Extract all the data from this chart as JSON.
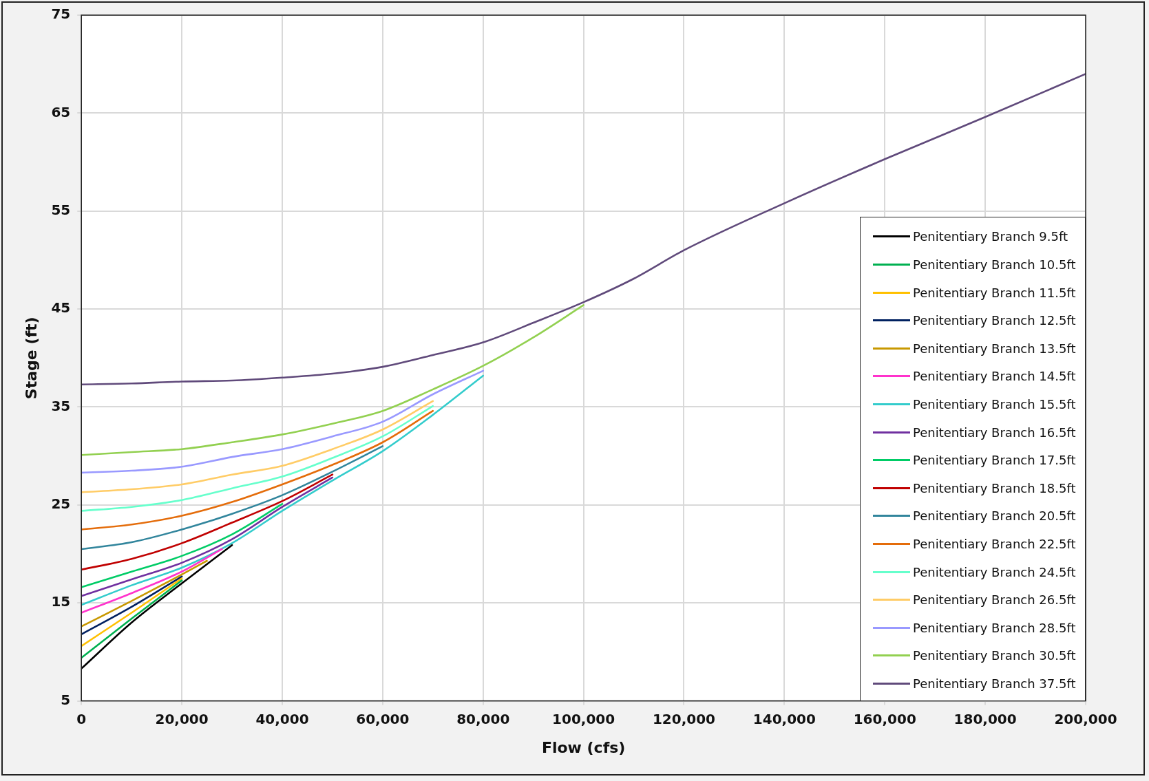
{
  "chart_data": {
    "type": "line",
    "xlabel": "Flow (cfs)",
    "ylabel": "Stage (ft)",
    "xlim": [
      0,
      200000
    ],
    "xticks": [
      0,
      {
        "value": 20000,
        "label": "20,000"
      },
      {
        "value": 40000,
        "label": "40,000"
      },
      {
        "value": 60000,
        "label": "60,000"
      },
      {
        "value": 80000,
        "label": "80,000"
      },
      {
        "value": 100000,
        "label": "100,000"
      },
      {
        "value": 120000,
        "label": "120,000"
      },
      {
        "value": 140000,
        "label": "140,000"
      },
      {
        "value": 160000,
        "label": "160,000"
      },
      {
        "value": 180000,
        "label": "180,000"
      },
      {
        "value": 200000,
        "label": "200,000"
      }
    ],
    "ylim": [
      5,
      75
    ],
    "yticks": [
      5,
      15,
      25,
      35,
      45,
      55,
      65,
      75
    ],
    "grid": true,
    "legend": "bottom right",
    "marker": "none",
    "line_style": "solid",
    "series": [
      {
        "name": "Penitentiary Branch 9.5ft",
        "color": "#000000",
        "x": [
          0,
          10000,
          20000,
          30000
        ],
        "values": [
          8.3,
          13.0,
          17.0,
          20.9
        ]
      },
      {
        "name": "Penitentiary Branch 10.5ft",
        "color": "#00b050",
        "x": [
          0,
          10000,
          20000
        ],
        "values": [
          9.4,
          13.4,
          17.3
        ]
      },
      {
        "name": "Penitentiary Branch 11.5ft",
        "color": "#ffc000",
        "x": [
          0,
          10000,
          20000
        ],
        "values": [
          10.6,
          14.0,
          17.5
        ]
      },
      {
        "name": "Penitentiary Branch 12.5ft",
        "color": "#002060",
        "x": [
          0,
          10000,
          20000
        ],
        "values": [
          11.8,
          14.6,
          17.7
        ]
      },
      {
        "name": "Penitentiary Branch 13.5ft",
        "color": "#c89800",
        "x": [
          0,
          10000,
          20000,
          25000
        ],
        "values": [
          12.6,
          15.2,
          17.9,
          19.3
        ]
      },
      {
        "name": "Penitentiary Branch 14.5ft",
        "color": "#ff33cc",
        "x": [
          0,
          10000,
          20000,
          28000
        ],
        "values": [
          14.0,
          16.0,
          18.2,
          20.5
        ]
      },
      {
        "name": "Penitentiary Branch 15.5ft",
        "color": "#33cccc",
        "x": [
          0,
          10000,
          20000,
          30000,
          40000,
          50000,
          60000,
          70000,
          80000
        ],
        "values": [
          14.8,
          16.8,
          18.6,
          21.1,
          24.4,
          27.5,
          30.5,
          34.2,
          38.2
        ]
      },
      {
        "name": "Penitentiary Branch 16.5ft",
        "color": "#7030a0",
        "x": [
          0,
          10000,
          20000,
          30000,
          40000,
          50000
        ],
        "values": [
          15.7,
          17.4,
          19.1,
          21.5,
          24.8,
          27.8
        ]
      },
      {
        "name": "Penitentiary Branch 17.5ft",
        "color": "#00cc66",
        "x": [
          0,
          10000,
          20000,
          30000,
          40000
        ],
        "values": [
          16.6,
          18.2,
          19.8,
          22.0,
          25.1
        ]
      },
      {
        "name": "Penitentiary Branch 18.5ft",
        "color": "#c00000",
        "x": [
          0,
          10000,
          20000,
          30000,
          40000,
          50000
        ],
        "values": [
          18.4,
          19.5,
          21.1,
          23.2,
          25.4,
          28.1
        ]
      },
      {
        "name": "Penitentiary Branch 20.5ft",
        "color": "#31859c",
        "x": [
          0,
          10000,
          20000,
          30000,
          40000,
          50000,
          60000
        ],
        "values": [
          20.5,
          21.2,
          22.5,
          24.1,
          26.0,
          28.4,
          31.0
        ]
      },
      {
        "name": "Penitentiary Branch 22.5ft",
        "color": "#e46c0a",
        "x": [
          0,
          10000,
          20000,
          30000,
          40000,
          50000,
          60000,
          70000
        ],
        "values": [
          22.5,
          23.0,
          23.9,
          25.3,
          27.1,
          29.1,
          31.4,
          34.6
        ]
      },
      {
        "name": "Penitentiary Branch 24.5ft",
        "color": "#66ffcc",
        "x": [
          0,
          10000,
          20000,
          30000,
          40000,
          50000,
          60000,
          70000
        ],
        "values": [
          24.4,
          24.8,
          25.5,
          26.7,
          27.9,
          29.8,
          32.0,
          35.1
        ]
      },
      {
        "name": "Penitentiary Branch 26.5ft",
        "color": "#ffcc66",
        "x": [
          0,
          10000,
          20000,
          30000,
          40000,
          50000,
          60000,
          70000
        ],
        "values": [
          26.3,
          26.6,
          27.1,
          28.1,
          29.0,
          30.7,
          32.7,
          35.6
        ]
      },
      {
        "name": "Penitentiary Branch 28.5ft",
        "color": "#9999ff",
        "x": [
          0,
          10000,
          20000,
          30000,
          40000,
          50000,
          60000,
          70000,
          80000
        ],
        "values": [
          28.3,
          28.5,
          28.9,
          29.9,
          30.7,
          32.0,
          33.5,
          36.3,
          38.7
        ]
      },
      {
        "name": "Penitentiary Branch 30.5ft",
        "color": "#92d050",
        "x": [
          0,
          10000,
          20000,
          30000,
          40000,
          50000,
          60000,
          70000,
          80000,
          90000,
          100000
        ],
        "values": [
          30.1,
          30.4,
          30.7,
          31.4,
          32.2,
          33.3,
          34.6,
          36.8,
          39.2,
          42.1,
          45.4
        ]
      },
      {
        "name": "Penitentiary Branch 37.5ft",
        "color": "#604a7b",
        "x": [
          0,
          10000,
          20000,
          30000,
          40000,
          50000,
          60000,
          70000,
          80000,
          90000,
          100000,
          110000,
          120000,
          140000,
          160000,
          180000,
          200000
        ],
        "values": [
          37.3,
          37.4,
          37.6,
          37.7,
          38.0,
          38.4,
          39.1,
          40.3,
          41.6,
          43.6,
          45.7,
          48.1,
          51.0,
          55.8,
          60.3,
          64.6,
          69.0
        ]
      }
    ]
  }
}
